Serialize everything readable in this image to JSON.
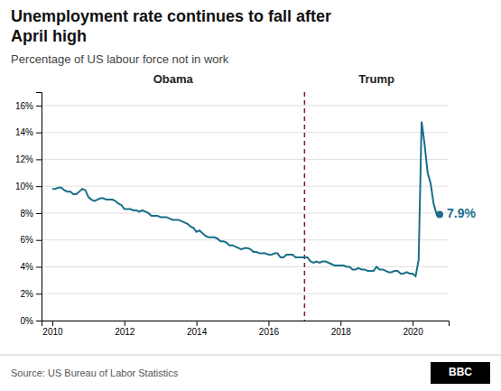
{
  "chart_data": {
    "type": "line",
    "title": "Unemployment rate continues to fall after\nApril high",
    "subtitle": "Percentage of US labour force not in work",
    "source": "Source: US Bureau of Labor Statistics",
    "logo": "BBC",
    "annotation": "7.9%",
    "annotation_color": "#1a6e8a",
    "period_labels": [
      "Obama",
      "Trump"
    ],
    "vline": {
      "x": 2017.0,
      "color": "#8b1a1a",
      "line_style": "dashed"
    },
    "color": "#1a6e8a",
    "marker": "last",
    "grid": true,
    "xlim": [
      2009.7,
      2021.0
    ],
    "xticks": [
      2010,
      2012,
      2014,
      2016,
      2018,
      2020
    ],
    "ylim": [
      0,
      0.17
    ],
    "yticks": [
      {
        "value": 0,
        "label": "0%"
      },
      {
        "value": 0.02,
        "label": "2%"
      },
      {
        "value": 0.04,
        "label": "4%"
      },
      {
        "value": 0.06,
        "label": "6%"
      },
      {
        "value": 0.08,
        "label": "8%"
      },
      {
        "value": 0.1,
        "label": "10%"
      },
      {
        "value": 0.12,
        "label": "12%"
      },
      {
        "value": 0.14,
        "label": "14%"
      },
      {
        "value": 0.16,
        "label": "16%"
      }
    ],
    "x": [
      2010.0,
      2010.083,
      2010.167,
      2010.25,
      2010.333,
      2010.417,
      2010.5,
      2010.583,
      2010.667,
      2010.75,
      2010.833,
      2010.917,
      2011.0,
      2011.083,
      2011.167,
      2011.25,
      2011.333,
      2011.417,
      2011.5,
      2011.583,
      2011.667,
      2011.75,
      2011.833,
      2011.917,
      2012.0,
      2012.083,
      2012.167,
      2012.25,
      2012.333,
      2012.417,
      2012.5,
      2012.583,
      2012.667,
      2012.75,
      2012.833,
      2012.917,
      2013.0,
      2013.083,
      2013.167,
      2013.25,
      2013.333,
      2013.417,
      2013.5,
      2013.583,
      2013.667,
      2013.75,
      2013.833,
      2013.917,
      2014.0,
      2014.083,
      2014.167,
      2014.25,
      2014.333,
      2014.417,
      2014.5,
      2014.583,
      2014.667,
      2014.75,
      2014.833,
      2014.917,
      2015.0,
      2015.083,
      2015.167,
      2015.25,
      2015.333,
      2015.417,
      2015.5,
      2015.583,
      2015.667,
      2015.75,
      2015.833,
      2015.917,
      2016.0,
      2016.083,
      2016.167,
      2016.25,
      2016.333,
      2016.417,
      2016.5,
      2016.583,
      2016.667,
      2016.75,
      2016.833,
      2016.917,
      2017.0,
      2017.083,
      2017.167,
      2017.25,
      2017.333,
      2017.417,
      2017.5,
      2017.583,
      2017.667,
      2017.75,
      2017.833,
      2017.917,
      2018.0,
      2018.083,
      2018.167,
      2018.25,
      2018.333,
      2018.417,
      2018.5,
      2018.583,
      2018.667,
      2018.75,
      2018.833,
      2018.917,
      2019.0,
      2019.083,
      2019.167,
      2019.25,
      2019.333,
      2019.417,
      2019.5,
      2019.583,
      2019.667,
      2019.75,
      2019.833,
      2019.917,
      2020.0,
      2020.083,
      2020.167,
      2020.25,
      2020.333,
      2020.417,
      2020.5,
      2020.583,
      2020.667,
      2020.75
    ],
    "values": [
      0.098,
      0.098,
      0.099,
      0.099,
      0.097,
      0.096,
      0.096,
      0.094,
      0.094,
      0.096,
      0.098,
      0.097,
      0.092,
      0.09,
      0.089,
      0.09,
      0.091,
      0.091,
      0.09,
      0.09,
      0.09,
      0.089,
      0.087,
      0.086,
      0.083,
      0.083,
      0.083,
      0.082,
      0.082,
      0.081,
      0.082,
      0.081,
      0.08,
      0.078,
      0.078,
      0.078,
      0.077,
      0.077,
      0.077,
      0.076,
      0.075,
      0.075,
      0.075,
      0.074,
      0.073,
      0.072,
      0.07,
      0.069,
      0.066,
      0.067,
      0.065,
      0.063,
      0.062,
      0.062,
      0.062,
      0.061,
      0.059,
      0.059,
      0.058,
      0.056,
      0.056,
      0.055,
      0.054,
      0.053,
      0.054,
      0.054,
      0.053,
      0.051,
      0.051,
      0.05,
      0.05,
      0.05,
      0.049,
      0.049,
      0.05,
      0.05,
      0.047,
      0.047,
      0.049,
      0.049,
      0.049,
      0.047,
      0.047,
      0.047,
      0.047,
      0.047,
      0.044,
      0.043,
      0.044,
      0.043,
      0.044,
      0.044,
      0.043,
      0.042,
      0.041,
      0.041,
      0.041,
      0.041,
      0.04,
      0.04,
      0.038,
      0.038,
      0.039,
      0.038,
      0.038,
      0.037,
      0.037,
      0.037,
      0.04,
      0.038,
      0.038,
      0.037,
      0.036,
      0.036,
      0.037,
      0.037,
      0.035,
      0.035,
      0.036,
      0.035,
      0.035,
      0.033,
      0.045,
      0.148,
      0.131,
      0.11,
      0.102,
      0.087,
      0.079,
      0.079
    ]
  }
}
